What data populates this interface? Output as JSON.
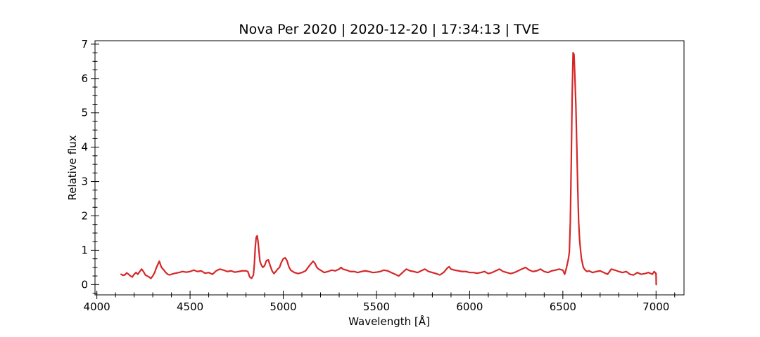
{
  "chart_data": {
    "type": "line",
    "title": "Nova Per 2020 | 2020-12-20 | 17:34:13 | TVE",
    "xlabel": "Wavelength [Å]",
    "ylabel": "Relative flux",
    "xlim": [
      3990,
      7150
    ],
    "ylim": [
      -0.3,
      7.1
    ],
    "x_ticks": [
      4000,
      4500,
      5000,
      5500,
      6000,
      6500,
      7000
    ],
    "y_ticks": [
      0,
      1,
      2,
      3,
      4,
      5,
      6,
      7
    ],
    "x_minor_step": 100,
    "y_minor_step": 0.25,
    "grid": false,
    "legend": "none",
    "line_color": "#d62728",
    "series": [
      {
        "x": [
          4130,
          4140,
          4150,
          4160,
          4170,
          4180,
          4190,
          4200,
          4210,
          4220,
          4230,
          4240,
          4250,
          4260,
          4270,
          4280,
          4290,
          4300,
          4310,
          4320,
          4330,
          4335,
          4340,
          4345,
          4350,
          4360,
          4370,
          4380,
          4390,
          4400,
          4420,
          4440,
          4460,
          4480,
          4500,
          4520,
          4540,
          4560,
          4580,
          4600,
          4620,
          4640,
          4660,
          4680,
          4700,
          4720,
          4740,
          4760,
          4780,
          4800,
          4810,
          4820,
          4830,
          4840,
          4845,
          4850,
          4855,
          4860,
          4865,
          4870,
          4875,
          4880,
          4890,
          4900,
          4910,
          4920,
          4930,
          4940,
          4950,
          4960,
          4970,
          4980,
          4990,
          5000,
          5010,
          5020,
          5030,
          5040,
          5060,
          5080,
          5100,
          5120,
          5140,
          5160,
          5170,
          5180,
          5190,
          5200,
          5220,
          5240,
          5260,
          5280,
          5300,
          5310,
          5320,
          5340,
          5360,
          5380,
          5400,
          5420,
          5440,
          5460,
          5480,
          5500,
          5520,
          5540,
          5560,
          5580,
          5600,
          5620,
          5640,
          5660,
          5680,
          5700,
          5720,
          5740,
          5760,
          5780,
          5800,
          5820,
          5840,
          5860,
          5880,
          5890,
          5900,
          5920,
          5940,
          5960,
          5980,
          6000,
          6020,
          6040,
          6060,
          6080,
          6100,
          6120,
          6140,
          6160,
          6180,
          6200,
          6220,
          6240,
          6260,
          6280,
          6300,
          6320,
          6340,
          6360,
          6380,
          6400,
          6420,
          6440,
          6460,
          6480,
          6500,
          6510,
          6520,
          6530,
          6535,
          6540,
          6545,
          6550,
          6555,
          6560,
          6565,
          6570,
          6575,
          6580,
          6585,
          6590,
          6595,
          6600,
          6610,
          6620,
          6630,
          6640,
          6660,
          6680,
          6700,
          6720,
          6740,
          6760,
          6780,
          6800,
          6820,
          6840,
          6860,
          6880,
          6900,
          6920,
          6940,
          6960,
          6980,
          6990,
          7000,
          7001
        ],
        "y": [
          0.3,
          0.27,
          0.28,
          0.34,
          0.3,
          0.25,
          0.22,
          0.3,
          0.35,
          0.3,
          0.38,
          0.45,
          0.38,
          0.28,
          0.25,
          0.22,
          0.18,
          0.25,
          0.35,
          0.5,
          0.62,
          0.68,
          0.6,
          0.52,
          0.48,
          0.42,
          0.35,
          0.3,
          0.28,
          0.3,
          0.33,
          0.35,
          0.38,
          0.36,
          0.38,
          0.42,
          0.38,
          0.4,
          0.33,
          0.35,
          0.3,
          0.4,
          0.45,
          0.42,
          0.38,
          0.4,
          0.36,
          0.38,
          0.4,
          0.4,
          0.38,
          0.22,
          0.18,
          0.28,
          0.6,
          1.1,
          1.38,
          1.42,
          1.25,
          0.95,
          0.68,
          0.6,
          0.5,
          0.55,
          0.7,
          0.72,
          0.55,
          0.4,
          0.32,
          0.38,
          0.45,
          0.5,
          0.65,
          0.75,
          0.78,
          0.7,
          0.52,
          0.42,
          0.35,
          0.32,
          0.35,
          0.4,
          0.55,
          0.68,
          0.62,
          0.5,
          0.45,
          0.42,
          0.35,
          0.38,
          0.42,
          0.4,
          0.45,
          0.5,
          0.45,
          0.42,
          0.38,
          0.38,
          0.35,
          0.38,
          0.4,
          0.38,
          0.35,
          0.36,
          0.38,
          0.42,
          0.4,
          0.35,
          0.3,
          0.25,
          0.35,
          0.45,
          0.4,
          0.38,
          0.35,
          0.4,
          0.45,
          0.38,
          0.35,
          0.32,
          0.28,
          0.35,
          0.48,
          0.52,
          0.45,
          0.42,
          0.4,
          0.38,
          0.38,
          0.35,
          0.35,
          0.33,
          0.35,
          0.38,
          0.32,
          0.35,
          0.4,
          0.45,
          0.38,
          0.35,
          0.32,
          0.35,
          0.4,
          0.45,
          0.5,
          0.42,
          0.38,
          0.4,
          0.45,
          0.38,
          0.35,
          0.4,
          0.42,
          0.45,
          0.42,
          0.3,
          0.5,
          0.75,
          0.95,
          1.8,
          3.5,
          5.5,
          6.75,
          6.7,
          6.0,
          5.2,
          4.0,
          2.8,
          1.8,
          1.3,
          1.0,
          0.75,
          0.5,
          0.42,
          0.38,
          0.4,
          0.35,
          0.38,
          0.4,
          0.35,
          0.3,
          0.45,
          0.42,
          0.38,
          0.35,
          0.38,
          0.3,
          0.28,
          0.35,
          0.3,
          0.32,
          0.35,
          0.3,
          0.38,
          0.32,
          0.0
        ]
      }
    ]
  }
}
